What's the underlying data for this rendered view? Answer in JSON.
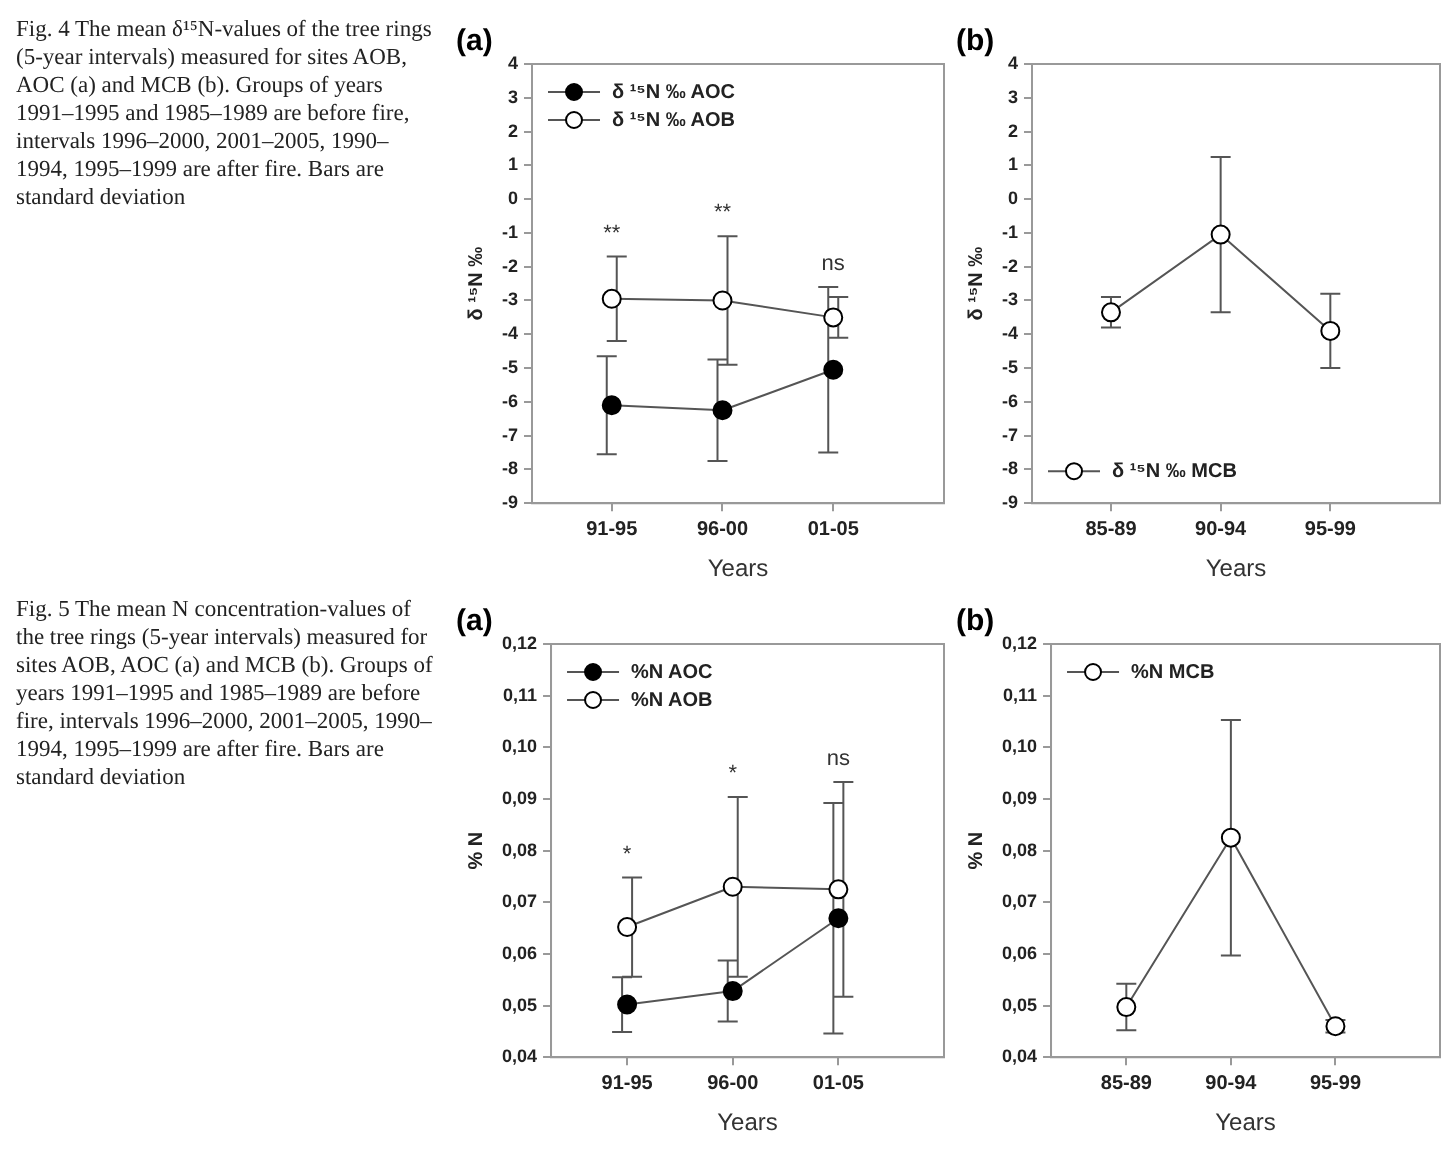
{
  "chart_data": [
    {
      "type": "line",
      "title": "(a)",
      "ylabel": "δ ¹⁵N ‰",
      "xlabel": "Years",
      "categories": [
        "91-95",
        "96-00",
        "01-05"
      ],
      "series": [
        {
          "name": "δ ¹⁵N ‰ AOC",
          "color": "#000000",
          "values": [
            -6.1,
            -6.25,
            -5.05
          ],
          "errors": [
            1.45,
            1.5,
            2.45
          ]
        },
        {
          "name": "δ ¹⁵N ‰ AOB",
          "color": "#ffffff",
          "values": [
            -2.95,
            -3.0,
            -3.5
          ],
          "errors": [
            1.25,
            1.9,
            0.6
          ]
        }
      ],
      "ylim": [
        -9,
        4
      ],
      "yticks": [
        -9,
        -8,
        -7,
        -6,
        -5,
        -4,
        -3,
        -2,
        -1,
        0,
        1,
        2,
        3,
        4
      ],
      "grid": false,
      "legend": "top left",
      "marker": "circle",
      "line_style": "solid",
      "annotations": [
        "Fig. 4 The mean δ¹⁵N-values of the tree rings (5-year intervals) measured for sites AOB, AOC (a) and MCB (b). Groups of years 1991–1995 and 1985–1989 are before fire, intervals 1996–2000, 2001–2005, 1990–1994, 1995–1999 are after fire. Bars are standard deviation",
        "**",
        "**",
        "ns"
      ]
    },
    {
      "type": "line",
      "title": "(b)",
      "ylabel": "δ ¹⁵N ‰",
      "xlabel": "Years",
      "categories": [
        "85-89",
        "90-94",
        "95-99"
      ],
      "series": [
        {
          "name": "δ ¹⁵N ‰ MCB",
          "color": "#ffffff",
          "values": [
            -3.35,
            -1.05,
            -3.9
          ],
          "errors": [
            0.45,
            2.3,
            1.1
          ]
        }
      ],
      "ylim": [
        -9,
        4
      ],
      "yticks": [
        -9,
        -8,
        -7,
        -6,
        -5,
        -4,
        -3,
        -2,
        -1,
        0,
        1,
        2,
        3,
        4
      ],
      "grid": false,
      "legend": "bottom left",
      "marker": "circle",
      "line_style": "solid"
    },
    {
      "type": "line",
      "title": "(a)",
      "ylabel": "% N",
      "xlabel": "Years",
      "categories": [
        "91-95",
        "96-00",
        "01-05"
      ],
      "series": [
        {
          "name": "%N AOC",
          "color": "#000000",
          "values": [
            0.0502,
            0.0528,
            0.0669
          ],
          "errors": [
            0.0053,
            0.0059,
            0.0223
          ]
        },
        {
          "name": "%N AOB",
          "color": "#ffffff",
          "values": [
            0.0652,
            0.073,
            0.0725
          ],
          "errors": [
            0.0096,
            0.0174,
            0.0208
          ]
        }
      ],
      "ylim": [
        0.04,
        0.12
      ],
      "yticks": [
        {
          "value": 0.04,
          "label": "0,04"
        },
        {
          "value": 0.05,
          "label": "0,05"
        },
        {
          "value": 0.06,
          "label": "0,06"
        },
        {
          "value": 0.07,
          "label": "0,07"
        },
        {
          "value": 0.08,
          "label": "0,08"
        },
        {
          "value": 0.09,
          "label": "0,09"
        },
        {
          "value": 0.1,
          "label": "0,10"
        },
        {
          "value": 0.11,
          "label": "0,11"
        },
        {
          "value": 0.12,
          "label": "0,12"
        }
      ],
      "grid": false,
      "legend": "top left",
      "marker": "circle",
      "line_style": "solid",
      "annotations": [
        "Fig. 5 The mean N concentration-values of the tree rings (5-year intervals) measured for sites AOB, AOC (a) and MCB (b). Groups of years 1991–1995 and 1985–1989 are before fire, intervals 1996–2000, 2001–2005, 1990–1994, 1995–1999 are after fire. Bars are standard deviation",
        "*",
        "*",
        "ns"
      ]
    },
    {
      "type": "line",
      "title": "(b)",
      "ylabel": "% N",
      "xlabel": "Years",
      "categories": [
        "85-89",
        "90-94",
        "95-99"
      ],
      "series": [
        {
          "name": "%N MCB",
          "color": "#ffffff",
          "values": [
            0.0497,
            0.0825,
            0.046
          ],
          "errors": [
            0.0045,
            0.0228,
            0.0012
          ]
        }
      ],
      "ylim": [
        0.04,
        0.12
      ],
      "yticks": [
        {
          "value": 0.04,
          "label": "0,04"
        },
        {
          "value": 0.05,
          "label": "0,05"
        },
        {
          "value": 0.06,
          "label": "0,06"
        },
        {
          "value": 0.07,
          "label": "0,07"
        },
        {
          "value": 0.08,
          "label": "0,08"
        },
        {
          "value": 0.09,
          "label": "0,09"
        },
        {
          "value": 0.1,
          "label": "0,10"
        },
        {
          "value": 0.11,
          "label": "0,11"
        },
        {
          "value": 0.12,
          "label": "0,12"
        }
      ],
      "grid": false,
      "legend": "top left",
      "marker": "circle",
      "line_style": "solid"
    }
  ]
}
